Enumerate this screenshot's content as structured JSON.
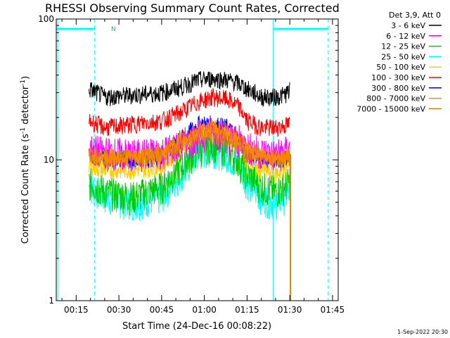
{
  "chart_data": {
    "type": "line",
    "title": "RHESSI Observing Summary Count Rates, Corrected",
    "xlabel": "Start Time (24-Dec-16 00:08:22)",
    "ylabel_main": "Corrected Count Rate (s",
    "ylabel_sup1": "-1",
    "ylabel_mid": " detector",
    "ylabel_sup2": "-1",
    "ylabel_end": ")",
    "yscale": "log",
    "xlim_min": [
      8,
      107
    ],
    "ylim": [
      1,
      100
    ],
    "xticks": [
      {
        "value": 15,
        "label": "00:15"
      },
      {
        "value": 30,
        "label": "00:30"
      },
      {
        "value": 45,
        "label": "00:45"
      },
      {
        "value": 60,
        "label": "01:00"
      },
      {
        "value": 75,
        "label": "01:15"
      },
      {
        "value": 90,
        "label": "01:30"
      },
      {
        "value": 105,
        "label": "01:45"
      }
    ],
    "yticks": [
      {
        "value": 1,
        "label": "1"
      },
      {
        "value": 10,
        "label": "10"
      },
      {
        "value": 100,
        "label": "100"
      }
    ],
    "legend_title": "Det 3,9, Att 0",
    "legend_position": "right",
    "footer_date": "1-Sep-2022 20:30",
    "night_marker_label": "N",
    "series": [
      {
        "name": "3 - 6 keV",
        "color": "#000000",
        "x": [
          19.5,
          25,
          35,
          45,
          52,
          58,
          63,
          68,
          72,
          75,
          80,
          85,
          88,
          90
        ],
        "y": [
          32,
          28,
          29,
          30,
          33,
          37,
          38,
          37,
          35,
          32,
          28,
          28,
          29,
          31
        ]
      },
      {
        "name": "6 - 12 keV",
        "color": "#ff00ff",
        "x": [
          19.5,
          25,
          35,
          45,
          52,
          58,
          63,
          68,
          72,
          75,
          80,
          85,
          88,
          90
        ],
        "y": [
          12,
          11.5,
          11,
          11.5,
          13,
          15,
          16,
          15,
          14,
          12.5,
          11.5,
          11,
          11.5,
          12
        ]
      },
      {
        "name": "12 - 25 keV",
        "color": "#00cc00",
        "x": [
          19.5,
          25,
          35,
          45,
          52,
          58,
          63,
          68,
          72,
          75,
          80,
          85,
          88,
          90
        ],
        "y": [
          7,
          6,
          5.5,
          6.5,
          9,
          12,
          13,
          12,
          10,
          8,
          6.5,
          6,
          6.5,
          7
        ]
      },
      {
        "name": "25 - 50 keV",
        "color": "#00ffff",
        "x": [
          19.5,
          25,
          35,
          45,
          52,
          58,
          63,
          68,
          72,
          75,
          80,
          85,
          88,
          90
        ],
        "y": [
          6.5,
          5.5,
          5,
          5.5,
          8,
          11,
          12,
          11,
          9,
          7,
          5.5,
          5,
          5.5,
          6
        ]
      },
      {
        "name": "50 - 100 keV",
        "color": "#ffcc00",
        "x": [
          19.5,
          25,
          35,
          45,
          52,
          58,
          63,
          68,
          72,
          75,
          80,
          85,
          88,
          90
        ],
        "y": [
          9,
          8.5,
          8.5,
          9,
          12,
          15,
          16,
          15,
          13,
          10,
          8.5,
          8,
          8.5,
          9
        ]
      },
      {
        "name": "100 - 300 keV",
        "color": "#ff0000",
        "x": [
          19.5,
          25,
          35,
          45,
          52,
          58,
          63,
          68,
          72,
          75,
          80,
          85,
          88,
          90
        ],
        "y": [
          19,
          17,
          18,
          19,
          22,
          26,
          28,
          27,
          24,
          19,
          17,
          17,
          17.5,
          18
        ]
      },
      {
        "name": "300 - 800 keV",
        "color": "#0000ff",
        "x": [
          19.5,
          25,
          35,
          45,
          52,
          58,
          63,
          68,
          72,
          75,
          80,
          85,
          88,
          90
        ],
        "y": [
          11,
          10,
          10,
          10.5,
          14,
          18,
          18,
          17,
          14,
          11,
          10,
          10,
          10,
          10.5
        ]
      },
      {
        "name": "800 - 7000 keV",
        "color": "#ff8800",
        "x": [
          19.5,
          25,
          35,
          45,
          52,
          58,
          63,
          68,
          72,
          75,
          80,
          85,
          88,
          90
        ],
        "y": [
          11,
          10.5,
          10.5,
          11,
          14,
          16,
          17,
          16,
          14,
          12,
          11,
          10.5,
          10.5,
          11
        ]
      },
      {
        "name": "7000 - 15000 keV",
        "color": "#cc8800",
        "x": [
          19.5,
          25,
          35,
          45,
          52,
          58,
          63,
          68,
          72,
          75,
          80,
          85,
          88,
          90
        ],
        "y": [
          11,
          10.5,
          10.5,
          11,
          13,
          15,
          15,
          14,
          13,
          11.5,
          11,
          10.5,
          10.5,
          11
        ]
      }
    ],
    "saa_intervals_min": [
      [
        8,
        21.5
      ],
      [
        84.2,
        103.5
      ]
    ],
    "saa_color": "#00ffff"
  }
}
